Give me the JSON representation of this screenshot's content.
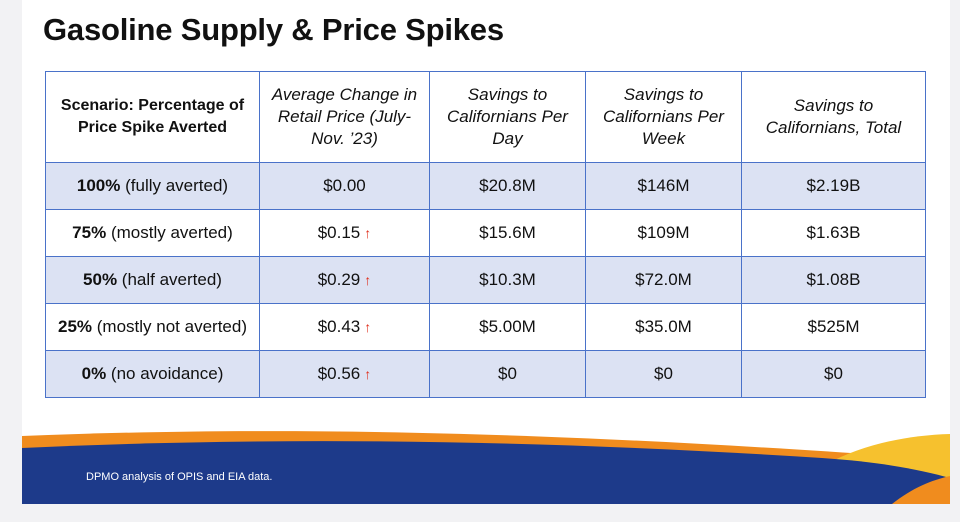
{
  "title": "Gasoline Supply & Price Spikes",
  "table": {
    "headers": [
      "Scenario: Percentage of Price Spike Averted",
      "Average Change in Retail Price (July-Nov. ’23)",
      "Savings to Californians Per Day",
      "Savings to Californians Per Week",
      "Savings to Californians, Total"
    ],
    "rows": [
      {
        "pct": "100%",
        "desc": "(fully averted)",
        "price": "$0.00",
        "arrow": "",
        "day": "$20.8M",
        "week": "$146M",
        "total": "$2.19B"
      },
      {
        "pct": "75%",
        "desc": "(mostly averted)",
        "price": "$0.15",
        "arrow": "↑",
        "day": "$15.6M",
        "week": "$109M",
        "total": "$1.63B"
      },
      {
        "pct": "50%",
        "desc": "(half averted)",
        "price": "$0.29",
        "arrow": "↑",
        "day": "$10.3M",
        "week": "$72.0M",
        "total": "$1.08B"
      },
      {
        "pct": "25%",
        "desc": "(mostly not averted)",
        "price": "$0.43",
        "arrow": "↑",
        "day": "$5.00M",
        "week": "$35.0M",
        "total": "$525M"
      },
      {
        "pct": "0%",
        "desc": "(no avoidance)",
        "price": "$0.56",
        "arrow": "↑",
        "day": "$0",
        "week": "$0",
        "total": "$0"
      }
    ]
  },
  "footer": {
    "source": "DPMO analysis of OPIS and EIA data."
  },
  "colors": {
    "border": "#4a72c9",
    "shade": "#dce2f3",
    "arrow": "#e0301e",
    "navy": "#1d3a8a",
    "orange": "#f08c1e",
    "gold": "#f6c12e"
  }
}
